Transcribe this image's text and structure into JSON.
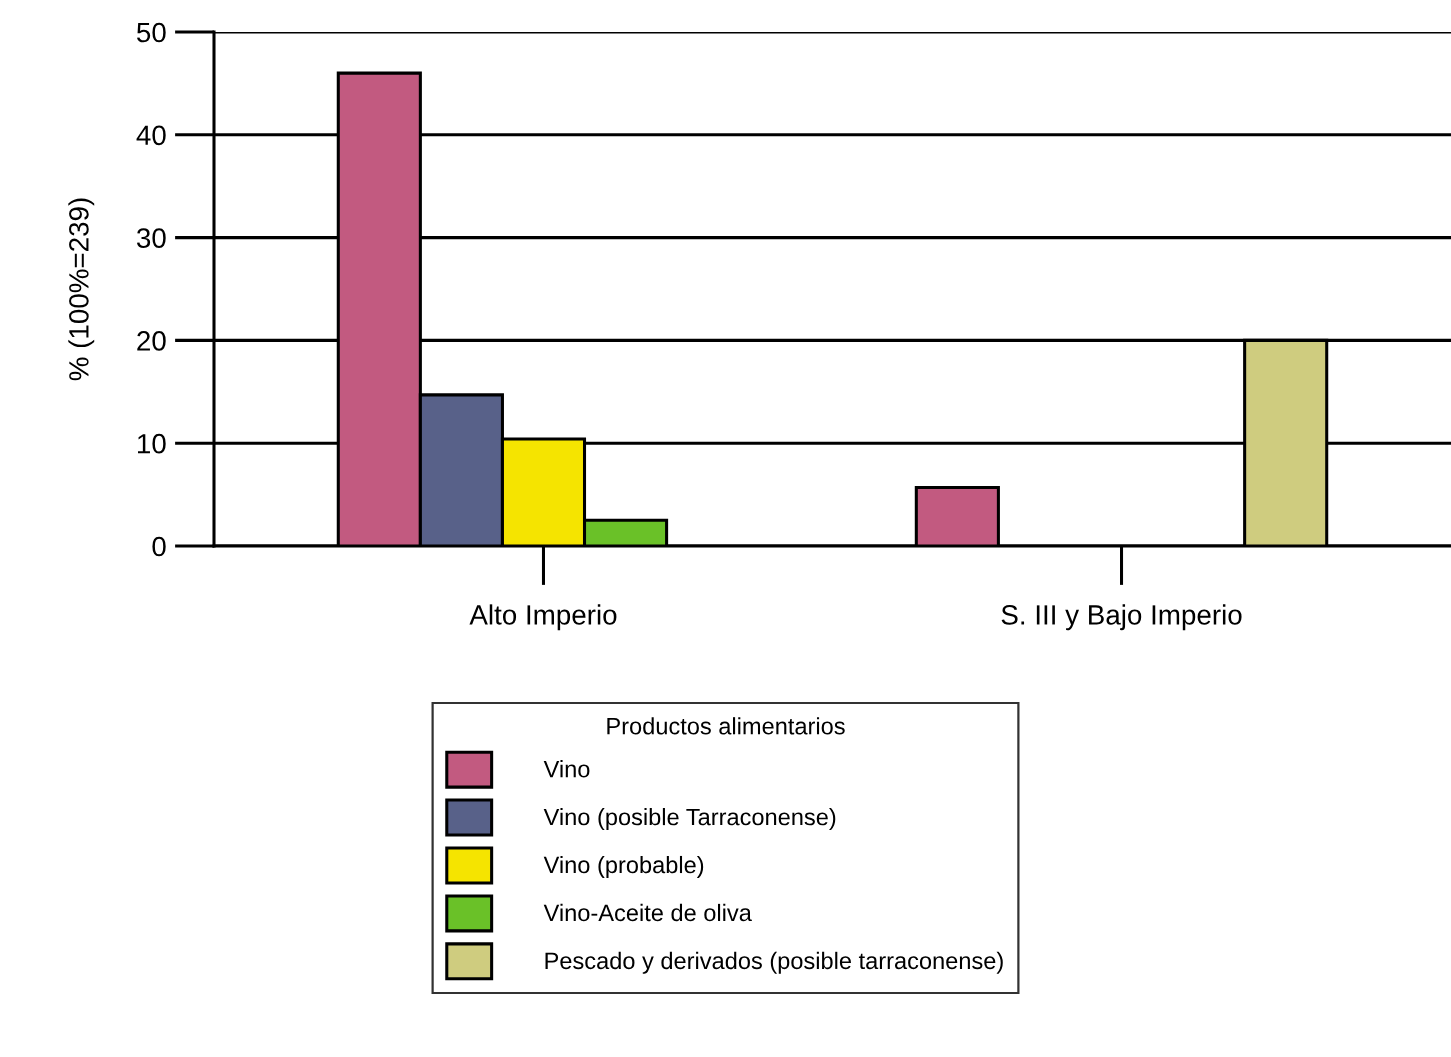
{
  "chart_data": {
    "type": "bar",
    "ylabel": "% (100%=239)",
    "legend_title": "Productos alimentarios",
    "categories": [
      "Alto Imperio",
      "S. III y Bajo Imperio"
    ],
    "series": [
      {
        "name": "Vino",
        "color": "#c25a80",
        "values": [
          46,
          5.7
        ]
      },
      {
        "name": "Vino (posible Tarraconense)",
        "color": "#586189",
        "values": [
          14.7,
          null
        ]
      },
      {
        "name": "Vino (probable)",
        "color": "#f5e400",
        "values": [
          10.4,
          null
        ]
      },
      {
        "name": "Vino-Aceite de oliva",
        "color": "#6ac128",
        "values": [
          2.5,
          null
        ]
      },
      {
        "name": "Pescado y derivados (posible tarraconense)",
        "color": "#cfcc7f",
        "values": [
          null,
          20
        ]
      }
    ],
    "ylim": [
      0,
      50
    ],
    "yticks": [
      0,
      10,
      20,
      30,
      40,
      50
    ],
    "grid": "y",
    "legend": "bottom"
  }
}
